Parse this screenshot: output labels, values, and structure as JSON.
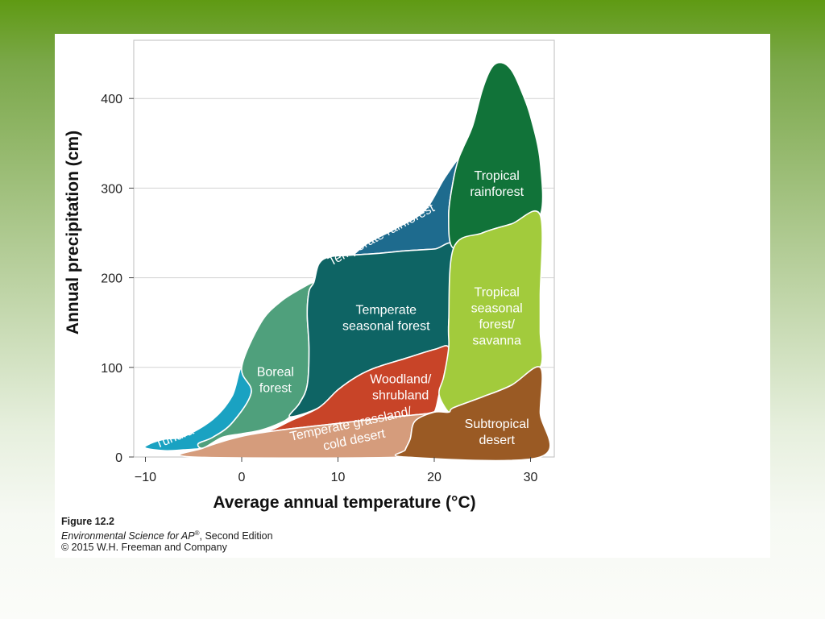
{
  "chart_data": {
    "type": "area",
    "xlabel": "Average annual temperature (°C)",
    "ylabel": "Annual precipitation (cm)",
    "xlim": [
      -11,
      32
    ],
    "ylim": [
      0,
      445
    ],
    "x_ticks": [
      -10,
      0,
      10,
      20,
      30
    ],
    "x_tick_labels": [
      "−10",
      "0",
      "10",
      "20",
      "30"
    ],
    "y_ticks": [
      0,
      100,
      200,
      300,
      400
    ],
    "y_tick_labels": [
      "0",
      "100",
      "200",
      "300",
      "400"
    ],
    "grid": "horizontal",
    "regions": [
      {
        "name": "Tundra",
        "label_lines": [
          "Tundra"
        ],
        "color": "#1aa2c2",
        "label_pos": [
          -7,
          22
        ],
        "label_rotate": -22,
        "polygon": [
          [
            -10,
            10
          ],
          [
            -9.5,
            15
          ],
          [
            -8,
            20
          ],
          [
            -6,
            23
          ],
          [
            -3,
            42
          ],
          [
            -1,
            68
          ],
          [
            0,
            100
          ],
          [
            1,
            72
          ],
          [
            -1,
            38
          ],
          [
            -3,
            22
          ],
          [
            -4.5,
            15
          ],
          [
            -4,
            10
          ],
          [
            -6,
            8
          ],
          [
            -8,
            7
          ]
        ]
      },
      {
        "name": "Boreal forest",
        "label_lines": [
          "Boreal",
          "forest"
        ],
        "color": "#4fa07c",
        "label_pos": [
          3.5,
          86
        ],
        "label_rotate": 0,
        "polygon": [
          [
            -4,
            10
          ],
          [
            -4.5,
            15
          ],
          [
            -3,
            22
          ],
          [
            -1,
            38
          ],
          [
            1,
            72
          ],
          [
            0,
            100
          ],
          [
            2,
            150
          ],
          [
            4,
            173
          ],
          [
            6,
            187
          ],
          [
            7.5,
            195
          ],
          [
            7,
            185
          ],
          [
            6.8,
            160
          ],
          [
            7,
            120
          ],
          [
            6.8,
            80
          ],
          [
            6,
            60
          ],
          [
            5,
            45
          ],
          [
            4,
            38
          ],
          [
            2,
            30
          ],
          [
            0,
            26
          ],
          [
            -2,
            22
          ]
        ]
      },
      {
        "name": "Temperate rainforest",
        "label_lines": [
          "Temperate rainforest"
        ],
        "color": "#1e6b8e",
        "label_pos": [
          14.5,
          248
        ],
        "label_rotate": -28,
        "polygon": [
          [
            7.5,
            195
          ],
          [
            9,
            205
          ],
          [
            11,
            220
          ],
          [
            13,
            238
          ],
          [
            16,
            255
          ],
          [
            19,
            275
          ],
          [
            21,
            310
          ],
          [
            22.5,
            332
          ],
          [
            22,
            310
          ],
          [
            21.5,
            270
          ],
          [
            22,
            233
          ],
          [
            20,
            232
          ],
          [
            17,
            230
          ],
          [
            14,
            227
          ],
          [
            11,
            225
          ],
          [
            9,
            223
          ],
          [
            8,
            215
          ]
        ]
      },
      {
        "name": "Temperate seasonal forest",
        "label_lines": [
          "Temperate",
          "seasonal forest"
        ],
        "color": "#0e6464",
        "label_pos": [
          15,
          155
        ],
        "label_rotate": 0,
        "polygon": [
          [
            7.5,
            195
          ],
          [
            8,
            215
          ],
          [
            9,
            223
          ],
          [
            11,
            225
          ],
          [
            14,
            227
          ],
          [
            17,
            230
          ],
          [
            20,
            232
          ],
          [
            22,
            233
          ],
          [
            21.5,
            150
          ],
          [
            21.5,
            122
          ],
          [
            20,
            120
          ],
          [
            17,
            110
          ],
          [
            14,
            100
          ],
          [
            12,
            90
          ],
          [
            10,
            75
          ],
          [
            8,
            55
          ],
          [
            5,
            45
          ],
          [
            6,
            60
          ],
          [
            6.8,
            80
          ],
          [
            7,
            120
          ],
          [
            6.8,
            160
          ],
          [
            7,
            185
          ]
        ]
      },
      {
        "name": "Woodland/shrubland",
        "label_lines": [
          "Woodland/",
          "shrubland"
        ],
        "color": "#c84428",
        "label_pos": [
          16.5,
          78
        ],
        "label_rotate": 0,
        "polygon": [
          [
            -2,
            18
          ],
          [
            0,
            22
          ],
          [
            3,
            30
          ],
          [
            5,
            40
          ],
          [
            8,
            55
          ],
          [
            10,
            75
          ],
          [
            12,
            90
          ],
          [
            14,
            100
          ],
          [
            17,
            110
          ],
          [
            20,
            120
          ],
          [
            21.5,
            122
          ],
          [
            21,
            90
          ],
          [
            20.5,
            70
          ],
          [
            20,
            50
          ],
          [
            19,
            48
          ],
          [
            16,
            45
          ],
          [
            12,
            40
          ],
          [
            8,
            35
          ],
          [
            4,
            30
          ],
          [
            0,
            23
          ]
        ]
      },
      {
        "name": "Temperate grassland/cold desert",
        "label_lines": [
          "Temperate grassland/",
          "cold desert"
        ],
        "color": "#d59c7c",
        "label_pos": [
          11.5,
          28
        ],
        "label_rotate": -12,
        "polygon": [
          [
            -4,
            10
          ],
          [
            0,
            23
          ],
          [
            4,
            30
          ],
          [
            8,
            35
          ],
          [
            12,
            40
          ],
          [
            16,
            45
          ],
          [
            19,
            48
          ],
          [
            20,
            50
          ],
          [
            18,
            40
          ],
          [
            17.5,
            20
          ],
          [
            17,
            8
          ],
          [
            17,
            0
          ],
          [
            -5,
            0
          ]
        ]
      },
      {
        "name": "Tropical rainforest",
        "label_lines": [
          "Tropical",
          "rainforest"
        ],
        "color": "#117339",
        "label_pos": [
          26.5,
          305
        ],
        "label_rotate": 0,
        "polygon": [
          [
            22.5,
            332
          ],
          [
            22,
            310
          ],
          [
            21.5,
            270
          ],
          [
            22,
            233
          ],
          [
            25,
            250
          ],
          [
            28,
            260
          ],
          [
            31,
            270
          ],
          [
            31,
            330
          ],
          [
            30,
            380
          ],
          [
            29,
            410
          ],
          [
            28,
            432
          ],
          [
            27,
            440
          ],
          [
            26,
            435
          ],
          [
            25,
            410
          ],
          [
            24,
            370
          ],
          [
            23,
            345
          ]
        ]
      },
      {
        "name": "Tropical seasonal forest/savanna",
        "label_lines": [
          "Tropical",
          "seasonal",
          "forest/",
          "savanna"
        ],
        "color": "#a2cb3c",
        "label_pos": [
          26.5,
          157
        ],
        "label_rotate": 0,
        "polygon": [
          [
            22,
            233
          ],
          [
            25,
            250
          ],
          [
            28,
            260
          ],
          [
            31,
            270
          ],
          [
            31,
            180
          ],
          [
            31,
            140
          ],
          [
            31,
            100
          ],
          [
            28,
            80
          ],
          [
            25,
            67
          ],
          [
            22,
            55
          ],
          [
            21.5,
            50
          ],
          [
            20.5,
            70
          ],
          [
            21,
            90
          ],
          [
            21.5,
            122
          ],
          [
            21.5,
            150
          ]
        ]
      },
      {
        "name": "Subtropical desert",
        "label_lines": [
          "Subtropical",
          "desert"
        ],
        "color": "#9a5a24",
        "label_pos": [
          26.5,
          28
        ],
        "label_rotate": 0,
        "polygon": [
          [
            17,
            0
          ],
          [
            17,
            8
          ],
          [
            17.5,
            20
          ],
          [
            18,
            40
          ],
          [
            20,
            50
          ],
          [
            21.5,
            50
          ],
          [
            22,
            55
          ],
          [
            25,
            67
          ],
          [
            28,
            80
          ],
          [
            31,
            100
          ],
          [
            31,
            50
          ],
          [
            31,
            0
          ]
        ]
      }
    ]
  },
  "caption": {
    "figure": "Figure 12.2",
    "source_title": "Environmental Science for AP",
    "source_mark": "®",
    "source_rest": ", Second Edition",
    "copyright": "© 2015 W.H. Freeman and Company"
  }
}
